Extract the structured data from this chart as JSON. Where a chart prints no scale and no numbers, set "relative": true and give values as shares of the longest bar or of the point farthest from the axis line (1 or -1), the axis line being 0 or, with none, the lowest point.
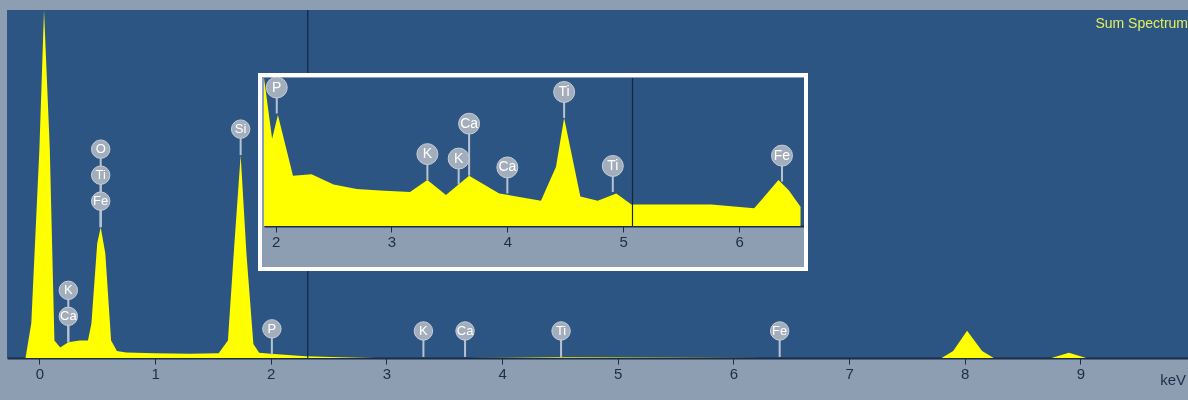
{
  "chart_data": [
    {
      "type": "area",
      "title": "Sum Spectrum",
      "xlabel": "keV",
      "relative": true,
      "color": "#ffff00",
      "x": [
        -0.28,
        -0.12,
        -0.07,
        0.0,
        0.04,
        0.09,
        0.13,
        0.18,
        0.25,
        0.35,
        0.42,
        0.45,
        0.5,
        0.53,
        0.57,
        0.62,
        0.67,
        0.75,
        1.0,
        1.3,
        1.55,
        1.63,
        1.68,
        1.74,
        1.79,
        1.85,
        1.9,
        2.0,
        2.3,
        2.6,
        2.9,
        3.3,
        3.7,
        4.5,
        6.4,
        7.8,
        7.9,
        8.02,
        8.15,
        8.25,
        8.75,
        8.9,
        9.05,
        9.93
      ],
      "values": [
        0,
        0,
        0.1,
        0.6,
        1,
        0.6,
        0.05,
        0.03,
        0.045,
        0.05,
        0.05,
        0.1,
        0.33,
        0.376,
        0.3,
        0.05,
        0.02,
        0.016,
        0.014,
        0.012,
        0.014,
        0.05,
        0.3,
        0.583,
        0.3,
        0.04,
        0.015,
        0.012,
        0.005,
        0.002,
        0,
        0,
        0,
        0.002,
        0,
        0,
        0.02,
        0.078,
        0.02,
        0,
        0,
        0.015,
        0,
        0
      ],
      "xlim": [
        -0.28,
        9.93
      ],
      "xticks": [
        0,
        1,
        2,
        3,
        4,
        5,
        6,
        7,
        8,
        9
      ],
      "ref_lines": [
        {
          "axis": "x",
          "value": 2.32,
          "color": "#16263a"
        }
      ],
      "annotations": [
        {
          "text": "Ca",
          "x": 0.25,
          "y": 0.045
        },
        {
          "text": "K",
          "x": 0.25,
          "y": 0.045
        },
        {
          "text": "Fe",
          "x": 0.53,
          "y": 0.376
        },
        {
          "text": "Ti",
          "x": 0.53,
          "y": 0.376
        },
        {
          "text": "O",
          "x": 0.53,
          "y": 0.376
        },
        {
          "text": "Si",
          "x": 1.74,
          "y": 0.583
        },
        {
          "text": "P",
          "x": 2.01,
          "y": 0.009
        },
        {
          "text": "K",
          "x": 3.32,
          "y": 0.003
        },
        {
          "text": "Ca",
          "x": 3.68,
          "y": 0.003
        },
        {
          "text": "Ti",
          "x": 4.51,
          "y": 0.003
        },
        {
          "text": "Fe",
          "x": 6.4,
          "y": 0.003
        }
      ]
    },
    {
      "type": "area",
      "relative": true,
      "color": "#ffff00",
      "x": [
        1.9,
        1.97,
        2.02,
        2.15,
        2.31,
        2.5,
        2.7,
        2.9,
        3.16,
        3.31,
        3.47,
        3.67,
        3.93,
        4.29,
        4.42,
        4.49,
        4.63,
        4.78,
        4.94,
        5.07,
        5.46,
        5.76,
        6.13,
        6.34,
        6.43,
        6.53
      ],
      "values": [
        1,
        0.59,
        0.75,
        0.34,
        0.35,
        0.28,
        0.25,
        0.24,
        0.23,
        0.31,
        0.21,
        0.34,
        0.22,
        0.17,
        0.4,
        0.73,
        0.2,
        0.17,
        0.22,
        0.145,
        0.145,
        0.145,
        0.12,
        0.31,
        0.24,
        0.13
      ],
      "xlim": [
        1.9,
        6.56
      ],
      "xticks": [
        2,
        3,
        4,
        5,
        6
      ],
      "ref_lines": [
        {
          "axis": "x",
          "value": 5.08,
          "color": "#16263a"
        }
      ],
      "annotations": [
        {
          "text": "P",
          "x": 2.01,
          "y": 0.76
        },
        {
          "text": "K",
          "x": 3.31,
          "y": 0.31
        },
        {
          "text": "K",
          "x": 3.58,
          "y": 0.28
        },
        {
          "text": "Ca",
          "x": 3.67,
          "y": 0.34
        },
        {
          "text": "Ca",
          "x": 4.0,
          "y": 0.22
        },
        {
          "text": "Ti",
          "x": 4.49,
          "y": 0.73
        },
        {
          "text": "Ti",
          "x": 4.91,
          "y": 0.23
        },
        {
          "text": "Fe",
          "x": 6.37,
          "y": 0.3
        }
      ]
    }
  ]
}
